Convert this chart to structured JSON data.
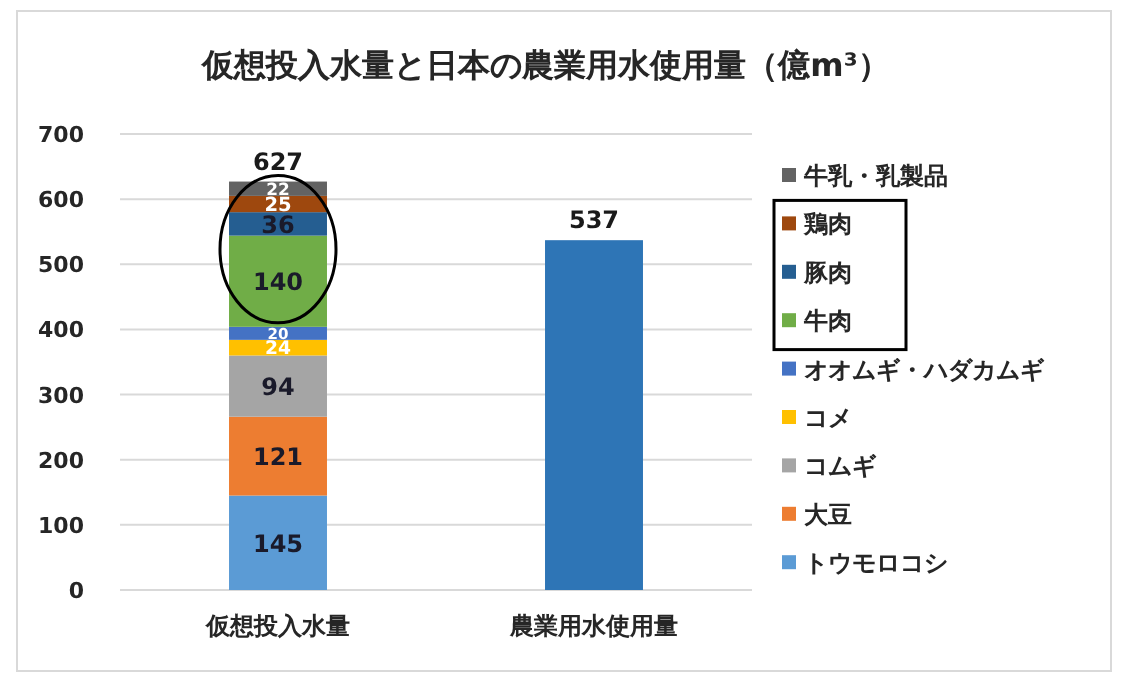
{
  "chart_data": {
    "type": "bar",
    "stacked": true,
    "title": "仮想投入水量と日本の農業用水使用量（億m³）",
    "categories": [
      "仮想投入水量",
      "農業用水使用量"
    ],
    "series": [
      {
        "name": "トウモロコシ",
        "color": "#5b9bd5",
        "values": [
          145,
          null
        ],
        "value_labels": [
          "145",
          null
        ]
      },
      {
        "name": "大豆",
        "color": "#ed7d31",
        "values": [
          121,
          null
        ],
        "value_labels": [
          "121",
          null
        ]
      },
      {
        "name": "コムギ",
        "color": "#a5a5a5",
        "values": [
          94,
          null
        ],
        "value_labels": [
          "94",
          null
        ]
      },
      {
        "name": "コメ",
        "color": "#ffc000",
        "values": [
          24,
          null
        ],
        "value_labels": [
          "24",
          null
        ]
      },
      {
        "name": "オオムギ・ハダカムギ",
        "color": "#4472c4",
        "values": [
          20,
          null
        ],
        "value_labels": [
          "20",
          null
        ]
      },
      {
        "name": "牛肉",
        "color": "#70ad47",
        "values": [
          140,
          null
        ],
        "value_labels": [
          "140",
          null
        ]
      },
      {
        "name": "豚肉",
        "color": "#255e91",
        "values": [
          36,
          null
        ],
        "value_labels": [
          "36",
          null
        ]
      },
      {
        "name": "鶏肉",
        "color": "#9e480e",
        "values": [
          25,
          null
        ],
        "value_labels": [
          "25",
          null
        ]
      },
      {
        "name": "牛乳・乳製品",
        "color": "#636363",
        "values": [
          22,
          null
        ],
        "value_labels": [
          "22",
          null
        ]
      },
      {
        "color": "#2e75b6",
        "values": [
          null,
          537
        ],
        "value_labels": [
          null,
          null
        ]
      }
    ],
    "totals": [
      "627",
      "537"
    ],
    "ylim": [
      0,
      700
    ],
    "yticks": [
      0,
      100,
      200,
      300,
      400,
      500,
      600,
      700
    ],
    "grid": "y",
    "legend": "right"
  }
}
